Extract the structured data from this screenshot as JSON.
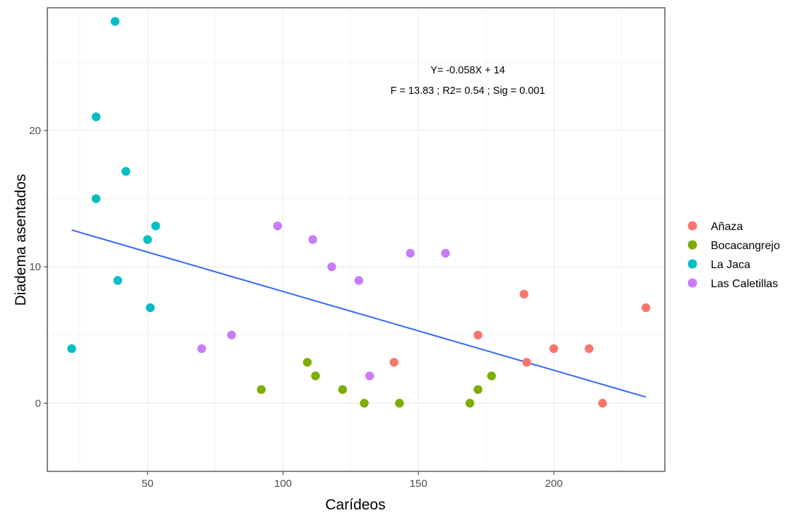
{
  "chart_data": {
    "type": "scatter",
    "title": "",
    "xlabel": "Carídeos",
    "ylabel": "Diadema asentados",
    "xlim": [
      13,
      241
    ],
    "ylim": [
      -5,
      29
    ],
    "xticks": [
      50,
      100,
      150,
      200
    ],
    "yticks": [
      0,
      10,
      20
    ],
    "grid": true,
    "legend_position": "right",
    "annotations": [
      "Y= -0.058X + 14",
      "F = 13.83 ; R2= 0.54 ; Sig = 0.001"
    ],
    "regression_line": {
      "x": [
        22,
        234
      ],
      "y": [
        12.7,
        0.45
      ],
      "color": "#3366FF"
    },
    "series": [
      {
        "name": "Añaza",
        "color": "#F8766D",
        "points": [
          [
            141,
            3
          ],
          [
            172,
            5
          ],
          [
            189,
            8
          ],
          [
            190,
            3
          ],
          [
            200,
            4
          ],
          [
            213,
            4
          ],
          [
            218,
            0
          ],
          [
            234,
            7
          ]
        ]
      },
      {
        "name": "Bocacangrejo",
        "color": "#7CAE00",
        "points": [
          [
            92,
            1
          ],
          [
            109,
            3
          ],
          [
            112,
            2
          ],
          [
            122,
            1
          ],
          [
            130,
            0
          ],
          [
            143,
            0
          ],
          [
            169,
            0
          ],
          [
            172,
            1
          ],
          [
            177,
            2
          ]
        ]
      },
      {
        "name": "La Jaca",
        "color": "#00BFC4",
        "points": [
          [
            22,
            4
          ],
          [
            31,
            21
          ],
          [
            31,
            15
          ],
          [
            38,
            28
          ],
          [
            39,
            9
          ],
          [
            42,
            17
          ],
          [
            50,
            12
          ],
          [
            51,
            7
          ],
          [
            53,
            13
          ]
        ]
      },
      {
        "name": "Las Caletillas",
        "color": "#C77CFF",
        "points": [
          [
            70,
            4
          ],
          [
            81,
            5
          ],
          [
            98,
            13
          ],
          [
            111,
            12
          ],
          [
            118,
            10
          ],
          [
            128,
            9
          ],
          [
            132,
            2
          ],
          [
            147,
            11
          ],
          [
            160,
            11
          ]
        ]
      }
    ]
  }
}
